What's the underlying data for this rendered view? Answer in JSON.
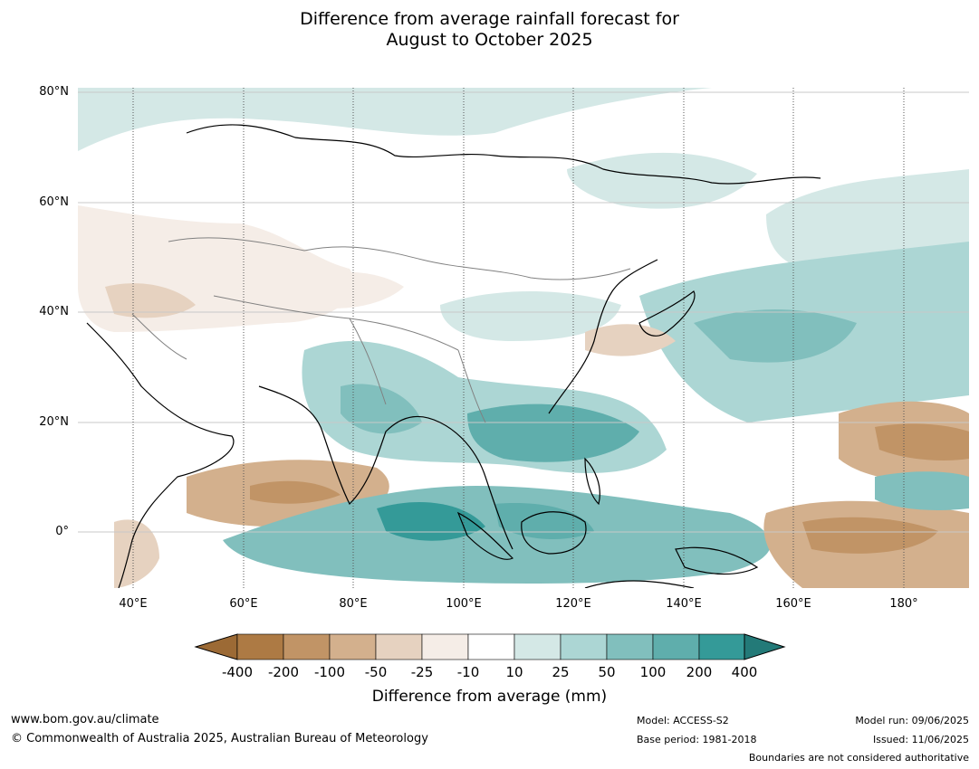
{
  "title": {
    "line1": "Difference from average rainfall forecast for",
    "line2": "August to October 2025"
  },
  "map": {
    "lat_labels": [
      "80°N",
      "60°N",
      "40°N",
      "20°N",
      "0°"
    ],
    "lon_labels": [
      "40°E",
      "60°E",
      "80°E",
      "100°E",
      "120°E",
      "140°E",
      "160°E",
      "180°"
    ]
  },
  "colorbar": {
    "title": "Difference from average (mm)",
    "ticks": [
      "-400",
      "-200",
      "-100",
      "-50",
      "-25",
      "-10",
      "10",
      "25",
      "50",
      "100",
      "200",
      "400"
    ],
    "colors": {
      "lt_minus400": "#9c6a35",
      "m400_m200": "#ad7a44",
      "m200_m100": "#c19466",
      "m100_m50": "#d3b08d",
      "m50_m25": "#e6d2c0",
      "m25_m10": "#f5ede7",
      "m10_p10": "#ffffff",
      "p10_p25": "#d4e8e6",
      "p25_p50": "#acd6d4",
      "p50_p100": "#81bfbd",
      "p100_p200": "#5faeac",
      "p200_p400": "#349a98",
      "gt_p400": "#237a78"
    }
  },
  "footer": {
    "website": "www.bom.gov.au/climate",
    "copyright": "© Commonwealth of Australia 2025, Australian Bureau of Meteorology",
    "model": "Model: ACCESS-S2",
    "base_period": "Base period: 1981-2018",
    "model_run": "Model run: 09/06/2025",
    "issued": "Issued: 11/06/2025",
    "boundaries": "Boundaries are not considered authoritative"
  }
}
